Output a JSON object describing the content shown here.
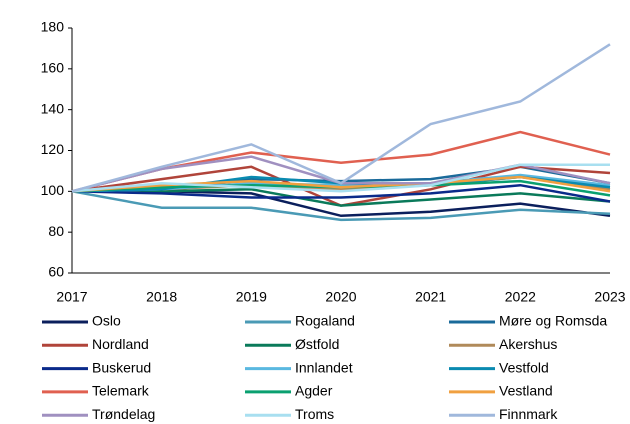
{
  "chart_data": {
    "type": "line",
    "x": [
      "2017",
      "2018",
      "2019",
      "2020",
      "2021",
      "2022",
      "2023"
    ],
    "ylim": [
      60,
      180
    ],
    "yticks": [
      60,
      80,
      100,
      120,
      140,
      160,
      180
    ],
    "grid": false,
    "series": [
      {
        "name": "Oslo",
        "color": "#0b1f5c",
        "values": [
          100,
          100,
          99,
          88,
          90,
          94,
          88
        ]
      },
      {
        "name": "Rogaland",
        "color": "#4a9ab5",
        "values": [
          100,
          92,
          92,
          86,
          87,
          91,
          89
        ]
      },
      {
        "name": "Møre og Romsda",
        "color": "#1a6a9a",
        "values": [
          100,
          100,
          106,
          105,
          106,
          112,
          104
        ]
      },
      {
        "name": "Nordland",
        "color": "#b0443a",
        "values": [
          100,
          106,
          112,
          93,
          101,
          112,
          109
        ]
      },
      {
        "name": "Østfold",
        "color": "#0a7a5a",
        "values": [
          100,
          100,
          101,
          93,
          96,
          99,
          95
        ]
      },
      {
        "name": "Akershus",
        "color": "#b08a5a",
        "values": [
          100,
          101,
          103,
          101,
          103,
          107,
          101
        ]
      },
      {
        "name": "Buskerud",
        "color": "#0a2a8a",
        "values": [
          100,
          99,
          97,
          97,
          99,
          103,
          95
        ]
      },
      {
        "name": "Innlandet",
        "color": "#5ab8e0",
        "values": [
          100,
          101,
          104,
          103,
          104,
          108,
          103
        ]
      },
      {
        "name": "Vestfold",
        "color": "#0a8ab0",
        "values": [
          100,
          101,
          107,
          104,
          103,
          107,
          102
        ]
      },
      {
        "name": "Telemark",
        "color": "#e06050",
        "values": [
          100,
          111,
          119,
          114,
          118,
          129,
          118
        ]
      },
      {
        "name": "Agder",
        "color": "#0aa070",
        "values": [
          100,
          102,
          103,
          102,
          103,
          105,
          98
        ]
      },
      {
        "name": "Vestland",
        "color": "#f0a040",
        "values": [
          100,
          103,
          105,
          102,
          104,
          107,
          100
        ]
      },
      {
        "name": "Trøndelag",
        "color": "#a090c0",
        "values": [
          100,
          111,
          117,
          104,
          104,
          113,
          104
        ]
      },
      {
        "name": "Troms",
        "color": "#a8dff0",
        "values": [
          100,
          104,
          102,
          100,
          103,
          113,
          113
        ]
      },
      {
        "name": "Finnmark",
        "color": "#a0b8dc",
        "values": [
          100,
          112,
          123,
          104,
          133,
          144,
          172
        ]
      }
    ]
  }
}
